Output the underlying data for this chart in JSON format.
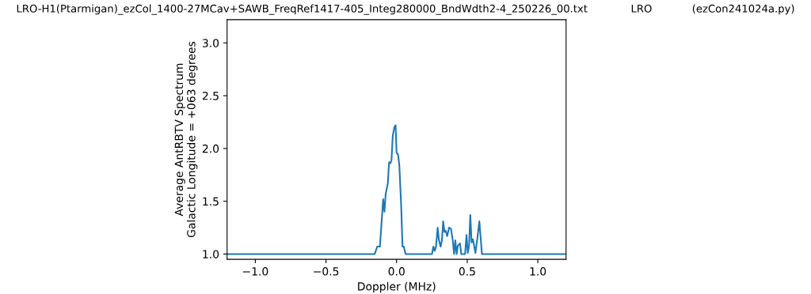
{
  "chart_data": {
    "type": "line",
    "title": "LRO-H1(Ptarmigan)_ezCol_1400-27MCav+SAWB_FreqRef1417-405_Integ280000_BndWdth2-4_250226_00.txt             LRO            (ezCon241024a.py)",
    "xlabel": "Doppler (MHz)",
    "ylabel": "Average AntRBTV Spectrum\nGalactic Longitude = +063 degrees",
    "series": [
      {
        "color": "#1f77b4",
        "x": [
          -1.2,
          -0.231,
          -0.155,
          -0.137,
          -0.128,
          -0.118,
          -0.095,
          -0.086,
          -0.077,
          -0.062,
          -0.053,
          -0.044,
          -0.036,
          -0.027,
          -0.016,
          -0.007,
          0.0,
          0.011,
          0.02,
          0.033,
          0.042,
          0.051,
          0.064,
          0.251,
          0.26,
          0.27,
          0.279,
          0.291,
          0.3,
          0.312,
          0.321,
          0.33,
          0.339,
          0.348,
          0.358,
          0.372,
          0.385,
          0.398,
          0.407,
          0.416,
          0.425,
          0.434,
          0.449,
          0.458,
          0.485,
          0.495,
          0.504,
          0.513,
          0.522,
          0.531,
          0.54,
          0.549,
          0.558,
          0.573,
          0.586,
          0.595,
          0.604,
          1.2
        ],
        "values": [
          1.0,
          1.0,
          1.0,
          1.07,
          1.07,
          1.07,
          1.52,
          1.4,
          1.57,
          1.67,
          1.87,
          1.86,
          1.89,
          2.12,
          2.2,
          2.22,
          1.96,
          1.94,
          1.83,
          1.44,
          1.07,
          1.07,
          1.0,
          1.0,
          1.07,
          1.03,
          1.07,
          1.25,
          1.13,
          1.07,
          1.13,
          1.31,
          1.21,
          1.22,
          1.17,
          1.25,
          1.24,
          1.13,
          1.0,
          1.13,
          1.0,
          1.08,
          1.1,
          1.0,
          1.0,
          1.18,
          1.01,
          1.08,
          1.37,
          1.11,
          1.14,
          1.08,
          1.01,
          1.16,
          1.31,
          1.16,
          1.0,
          1.0
        ]
      }
    ],
    "xlim": [
      -1.2,
      1.2
    ],
    "xticks": [
      {
        "value": -1,
        "label": "−1.0"
      },
      {
        "value": -0.5,
        "label": "−0.5"
      },
      {
        "value": 0,
        "label": "0.0"
      },
      0.5,
      {
        "value": 1,
        "label": "1.0"
      }
    ],
    "ylim": [
      0.95,
      3.22
    ],
    "yticks": [
      {
        "value": 1,
        "label": "1.0"
      },
      1.5,
      {
        "value": 2,
        "label": "2.0"
      },
      2.5,
      {
        "value": 3,
        "label": "3.0"
      }
    ],
    "grid": false,
    "legend": false
  }
}
